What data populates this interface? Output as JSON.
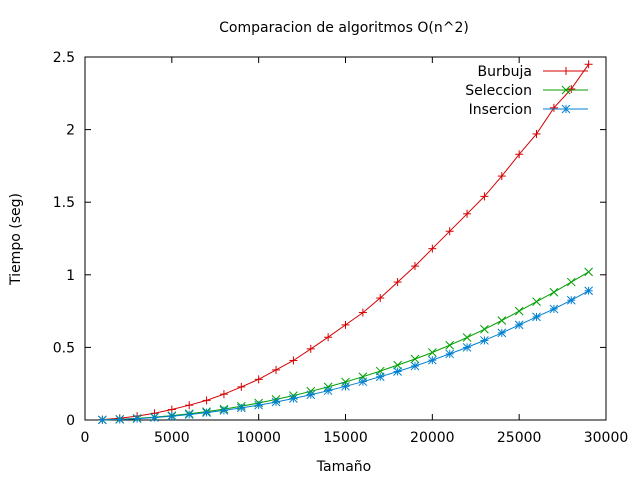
{
  "chart_data": {
    "type": "line",
    "title": "Comparacion de algoritmos O(n^2)",
    "xlabel": "Tamaño",
    "ylabel": "Tiempo (seg)",
    "xlim": [
      0,
      30000
    ],
    "ylim": [
      0,
      2.5
    ],
    "x_ticks": [
      0,
      5000,
      10000,
      15000,
      20000,
      25000,
      30000
    ],
    "x_tick_labels": [
      "0",
      "5000",
      "10000",
      "15000",
      "20000",
      "25000",
      "30000"
    ],
    "y_ticks": [
      0,
      0.5,
      1,
      1.5,
      2,
      2.5
    ],
    "y_tick_labels": [
      "0",
      "0.5",
      "1",
      "1.5",
      "2",
      "2.5"
    ],
    "grid": false,
    "legend_position": "top-right",
    "x": [
      1000,
      2000,
      3000,
      4000,
      5000,
      6000,
      7000,
      8000,
      9000,
      10000,
      11000,
      12000,
      13000,
      14000,
      15000,
      16000,
      17000,
      18000,
      19000,
      20000,
      21000,
      22000,
      23000,
      24000,
      25000,
      26000,
      27000,
      28000,
      29000
    ],
    "series": [
      {
        "name": "Burbuja",
        "color": "#d40000",
        "marker": "plus",
        "values": [
          0.003,
          0.012,
          0.027,
          0.046,
          0.072,
          0.102,
          0.135,
          0.178,
          0.228,
          0.28,
          0.345,
          0.41,
          0.49,
          0.57,
          0.655,
          0.74,
          0.84,
          0.95,
          1.06,
          1.18,
          1.3,
          1.42,
          1.54,
          1.68,
          1.83,
          1.97,
          2.15,
          2.28,
          2.45
        ]
      },
      {
        "name": "Seleccion",
        "color": "#00a000",
        "marker": "x",
        "values": [
          0.001,
          0.005,
          0.011,
          0.02,
          0.03,
          0.043,
          0.058,
          0.075,
          0.095,
          0.117,
          0.142,
          0.168,
          0.198,
          0.228,
          0.262,
          0.298,
          0.337,
          0.378,
          0.42,
          0.465,
          0.515,
          0.568,
          0.625,
          0.685,
          0.75,
          0.815,
          0.88,
          0.95,
          1.02
        ]
      },
      {
        "name": "Insercion",
        "color": "#0080d0",
        "marker": "star",
        "values": [
          0.001,
          0.004,
          0.009,
          0.017,
          0.026,
          0.038,
          0.051,
          0.066,
          0.083,
          0.102,
          0.124,
          0.148,
          0.174,
          0.202,
          0.232,
          0.264,
          0.298,
          0.334,
          0.372,
          0.412,
          0.455,
          0.5,
          0.548,
          0.6,
          0.655,
          0.71,
          0.765,
          0.825,
          0.89
        ]
      }
    ]
  }
}
